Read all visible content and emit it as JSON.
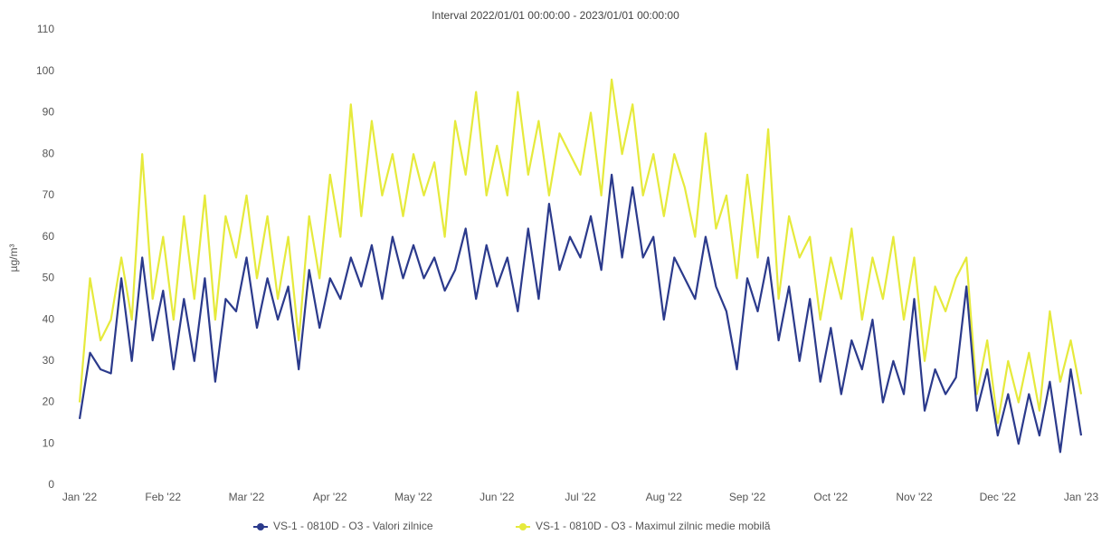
{
  "chart_data": {
    "type": "line",
    "title": "Interval 2022/01/01 00:00:00 - 2023/01/01 00:00:00",
    "y_label": "µg/m³",
    "categories": [
      "Jan '22",
      null,
      null,
      null,
      null,
      null,
      null,
      null,
      "Feb '22",
      null,
      null,
      null,
      null,
      null,
      null,
      null,
      "Mar '22",
      null,
      null,
      null,
      null,
      null,
      null,
      null,
      "Apr '22",
      null,
      null,
      null,
      null,
      null,
      null,
      null,
      "May '22",
      null,
      null,
      null,
      null,
      null,
      null,
      null,
      "Jun '22",
      null,
      null,
      null,
      null,
      null,
      null,
      null,
      "Jul '22",
      null,
      null,
      null,
      null,
      null,
      null,
      null,
      "Aug '22",
      null,
      null,
      null,
      null,
      null,
      null,
      null,
      "Sep '22",
      null,
      null,
      null,
      null,
      null,
      null,
      null,
      "Oct '22",
      null,
      null,
      null,
      null,
      null,
      null,
      null,
      "Nov '22",
      null,
      null,
      null,
      null,
      null,
      null,
      null,
      "Dec '22",
      null,
      null,
      null,
      null,
      null,
      null,
      null,
      "Jan '23"
    ],
    "series": [
      {
        "name": "VS-1 - 0810D - O3 - Valori zilnice",
        "color": "#2b3a8c",
        "values": [
          16,
          32,
          28,
          27,
          50,
          30,
          55,
          35,
          47,
          28,
          45,
          30,
          50,
          25,
          45,
          42,
          55,
          38,
          50,
          40,
          48,
          28,
          52,
          38,
          50,
          45,
          55,
          48,
          58,
          45,
          60,
          50,
          58,
          50,
          55,
          47,
          52,
          62,
          45,
          58,
          48,
          55,
          42,
          62,
          45,
          68,
          52,
          60,
          55,
          65,
          52,
          75,
          55,
          72,
          55,
          60,
          40,
          55,
          50,
          45,
          60,
          48,
          42,
          28,
          50,
          42,
          55,
          35,
          48,
          30,
          45,
          25,
          38,
          22,
          35,
          28,
          40,
          20,
          30,
          22,
          45,
          18,
          28,
          22,
          26,
          48,
          18,
          28,
          12,
          22,
          10,
          22,
          12,
          25,
          8,
          28,
          12
        ]
      },
      {
        "name": "VS-1 - 0810D - O3 - Maximul zilnic medie mobilă",
        "color": "#e6ea3c",
        "values": [
          20,
          50,
          35,
          40,
          55,
          40,
          80,
          45,
          60,
          40,
          65,
          45,
          70,
          40,
          65,
          55,
          70,
          50,
          65,
          45,
          60,
          35,
          65,
          50,
          75,
          60,
          92,
          65,
          88,
          70,
          80,
          65,
          80,
          70,
          78,
          60,
          88,
          75,
          95,
          70,
          82,
          70,
          95,
          75,
          88,
          70,
          85,
          80,
          75,
          90,
          70,
          98,
          80,
          92,
          70,
          80,
          65,
          80,
          72,
          60,
          85,
          62,
          70,
          50,
          75,
          55,
          86,
          45,
          65,
          55,
          60,
          40,
          55,
          45,
          62,
          40,
          55,
          45,
          60,
          40,
          55,
          30,
          48,
          42,
          50,
          55,
          22,
          35,
          15,
          30,
          20,
          32,
          18,
          42,
          25,
          35,
          22
        ]
      }
    ],
    "ylim": [
      0,
      110
    ],
    "yticks": [
      0,
      10,
      20,
      30,
      40,
      50,
      60,
      70,
      80,
      90,
      100,
      110
    ],
    "grid": false,
    "legend": "bottom"
  }
}
